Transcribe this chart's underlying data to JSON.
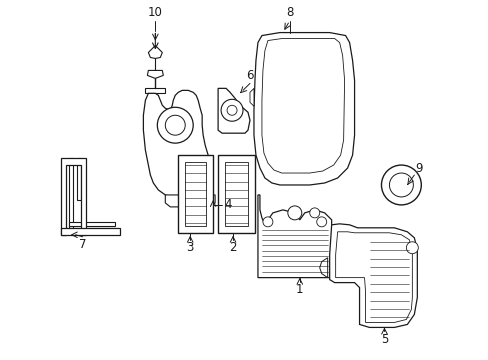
{
  "bg_color": "#ffffff",
  "line_color": "#1a1a1a",
  "fig_width": 4.89,
  "fig_height": 3.6,
  "dpi": 100,
  "label_fs": 8.5,
  "lw_main": 1.0,
  "lw_inner": 0.6,
  "lw_rib": 0.4
}
